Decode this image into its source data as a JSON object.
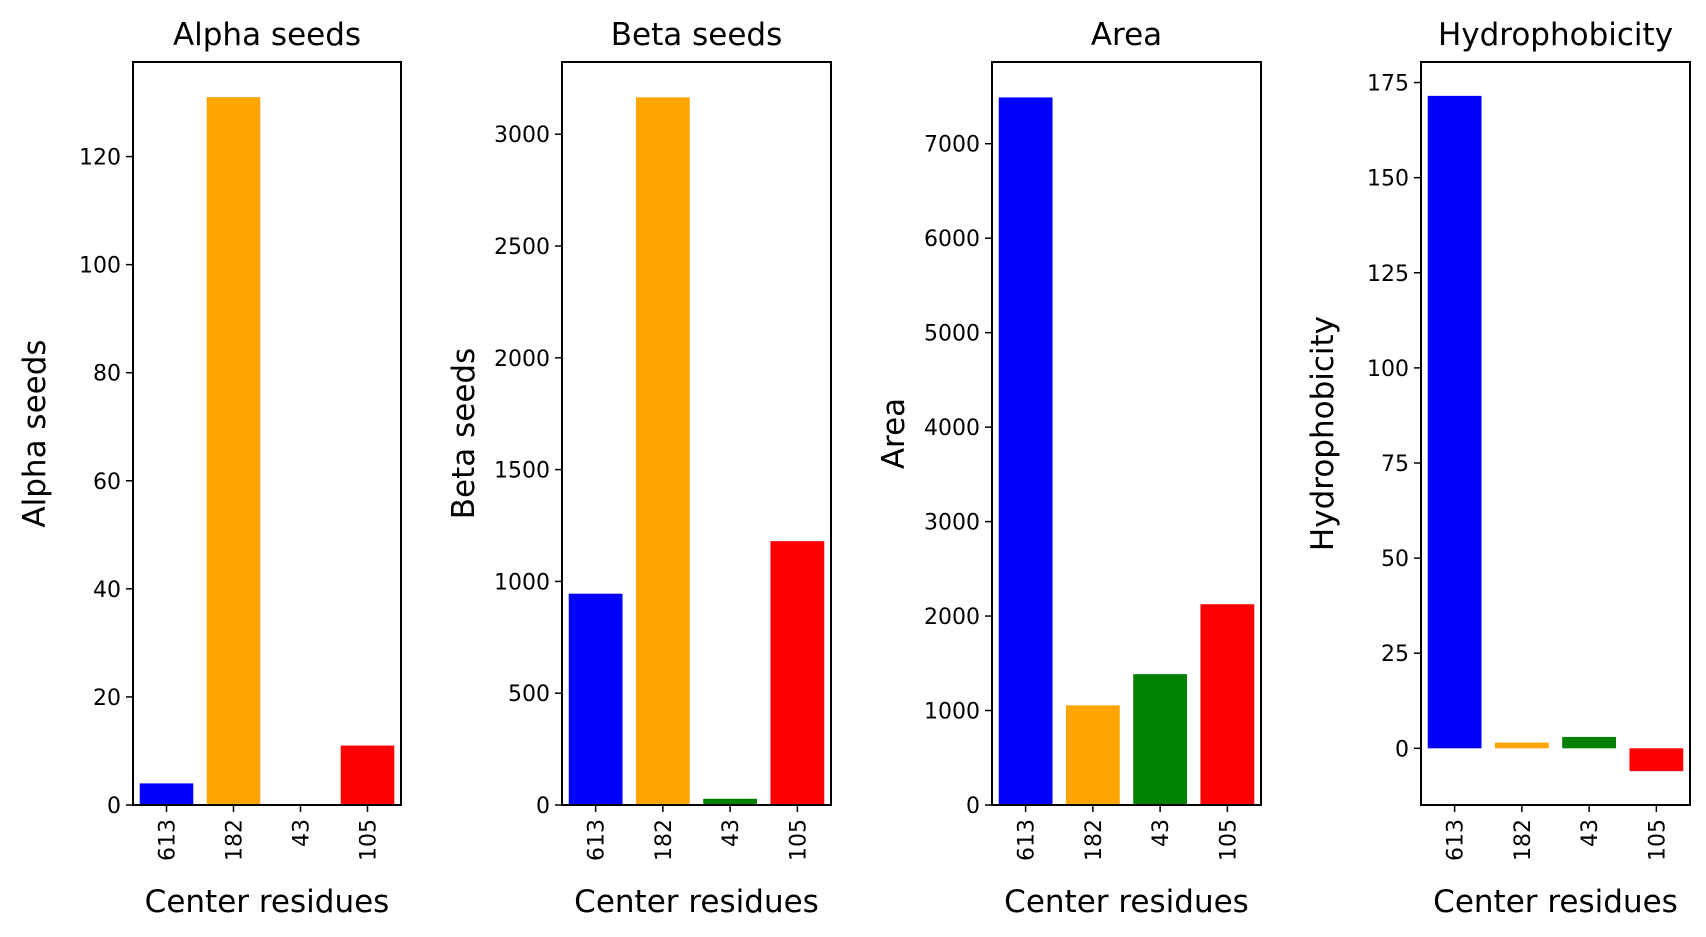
{
  "chart_data": [
    {
      "type": "bar",
      "title": "Alpha seeds",
      "xlabel": "Center residues",
      "ylabel": "Alpha seeds",
      "categories": [
        "613",
        "182",
        "43",
        "105"
      ],
      "values": [
        4,
        131,
        0,
        11
      ],
      "colors": [
        "#0000ff",
        "#ffa500",
        "#008000",
        "#ff0000"
      ],
      "ylim": [
        0,
        137.5
      ],
      "yticks": [
        0,
        20,
        40,
        60,
        80,
        100,
        120
      ]
    },
    {
      "type": "bar",
      "title": "Beta seeds",
      "xlabel": "Center residues",
      "ylabel": "Beta seeds",
      "categories": [
        "613",
        "182",
        "43",
        "105"
      ],
      "values": [
        945,
        3165,
        28,
        1180
      ],
      "colors": [
        "#0000ff",
        "#ffa500",
        "#008000",
        "#ff0000"
      ],
      "ylim": [
        0,
        3323
      ],
      "yticks": [
        0,
        500,
        1000,
        1500,
        2000,
        2500,
        3000
      ]
    },
    {
      "type": "bar",
      "title": "Area",
      "xlabel": "Center residues",
      "ylabel": "Area",
      "categories": [
        "613",
        "182",
        "43",
        "105"
      ],
      "values": [
        7490,
        1055,
        1385,
        2125
      ],
      "colors": [
        "#0000ff",
        "#ffa500",
        "#008000",
        "#ff0000"
      ],
      "ylim": [
        0,
        7865
      ],
      "yticks": [
        0,
        1000,
        2000,
        3000,
        4000,
        5000,
        6000,
        7000
      ]
    },
    {
      "type": "bar",
      "title": "Hydrophobicity",
      "xlabel": "Center residues",
      "ylabel": "Hydrophobicity",
      "categories": [
        "613",
        "182",
        "43",
        "105"
      ],
      "values": [
        171.5,
        1.5,
        3.0,
        -6.0
      ],
      "colors": [
        "#0000ff",
        "#ffa500",
        "#008000",
        "#ff0000"
      ],
      "ylim": [
        -14.9,
        180.4
      ],
      "yticks": [
        0,
        25,
        50,
        75,
        100,
        125,
        150,
        175
      ]
    }
  ]
}
